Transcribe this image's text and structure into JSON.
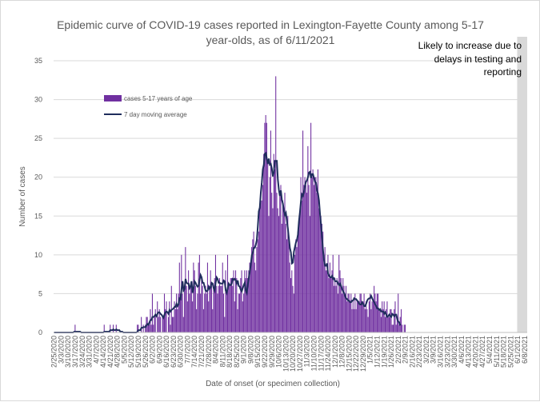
{
  "chart_data": {
    "type": "bar",
    "title_lines": [
      "Epidemic curve of COVID-19 cases reported in Lexington-Fayette County among 5-17",
      "year-olds, as of 6/11/2021"
    ],
    "xlabel": "Date of onset (or specimen collection)",
    "ylabel": "Number of cases",
    "ylim": [
      0,
      35
    ],
    "y_ticks": [
      "0",
      "5",
      "10",
      "15",
      "20",
      "25",
      "30",
      "35"
    ],
    "x_start": "2020-02-25",
    "x_end": "2021-06-10",
    "x_tick_labels": [
      "2/25/2020",
      "3/3/2020",
      "3/10/2020",
      "3/17/2020",
      "3/24/2020",
      "3/31/2020",
      "4/7/2020",
      "4/14/2020",
      "4/21/2020",
      "4/28/2020",
      "5/5/2020",
      "5/12/2020",
      "5/19/2020",
      "5/26/2020",
      "6/2/2020",
      "6/9/2020",
      "6/16/2020",
      "6/23/2020",
      "6/30/2020",
      "7/7/2020",
      "7/14/2020",
      "7/21/2020",
      "7/28/2020",
      "8/4/2020",
      "8/11/2020",
      "8/18/2020",
      "8/25/2020",
      "9/1/2020",
      "9/8/2020",
      "9/15/2020",
      "9/22/2020",
      "9/29/2020",
      "10/6/2020",
      "10/13/2020",
      "10/20/2020",
      "10/27/2020",
      "11/3/2020",
      "11/10/2020",
      "11/17/2020",
      "11/24/2020",
      "12/1/2020",
      "12/8/2020",
      "12/15/2020",
      "12/22/2020",
      "12/29/2020",
      "1/5/2021",
      "1/12/2021",
      "1/19/2021",
      "1/26/2021",
      "2/2/2021",
      "2/9/2021",
      "2/16/2021",
      "2/23/2021",
      "3/2/2021",
      "3/9/2021",
      "3/16/2021",
      "3/23/2021",
      "3/30/2021",
      "4/6/2021",
      "4/13/2021",
      "4/20/2021",
      "4/27/2021",
      "5/4/2021",
      "5/11/2021",
      "5/18/2021",
      "5/25/2021",
      "6/1/2021",
      "6/8/2021"
    ],
    "legend": {
      "placement": "top-left",
      "entries": [
        "cases 5-17 years of age",
        "7 day moving average"
      ]
    },
    "annotation": {
      "lines": [
        "Likely to increase due to",
        "delays in testing and",
        "reporting"
      ],
      "shaded_from": "2021-06-01",
      "shaded_to": "2021-06-10"
    },
    "colors": {
      "bars": "#7030a0",
      "moving_average": "#1f2d5c",
      "shade": "#d9d9d9",
      "grid": "#d9d9d9"
    },
    "series": [
      {
        "name": "cases 5-17 years of age",
        "type": "bar",
        "values": [
          0,
          0,
          0,
          0,
          0,
          0,
          0,
          0,
          0,
          0,
          0,
          0,
          0,
          0,
          0,
          0,
          0,
          0,
          0,
          0,
          0,
          1,
          0,
          0,
          0,
          0,
          0,
          0,
          0,
          0,
          0,
          0,
          0,
          0,
          0,
          0,
          0,
          0,
          0,
          0,
          0,
          0,
          0,
          0,
          0,
          0,
          0,
          0,
          0,
          0,
          1,
          0,
          0,
          0,
          0,
          0,
          1,
          0,
          0,
          1,
          0,
          0,
          1,
          0,
          0,
          0,
          0,
          0,
          0,
          0,
          0,
          0,
          0,
          0,
          0,
          0,
          0,
          0,
          0,
          0,
          0,
          0,
          0,
          1,
          1,
          0,
          0,
          2,
          0,
          1,
          0,
          1,
          2,
          2,
          1,
          1,
          3,
          1,
          5,
          1,
          2,
          3,
          0,
          4,
          2,
          3,
          2,
          0,
          2,
          2,
          5,
          3,
          4,
          0,
          2,
          4,
          1,
          6,
          2,
          2,
          4,
          3,
          5,
          3,
          5,
          9,
          5,
          10,
          5,
          2,
          6,
          11,
          6,
          4,
          8,
          5,
          6,
          6,
          4,
          9,
          8,
          6,
          3,
          5,
          9,
          10,
          5,
          7,
          6,
          3,
          5,
          6,
          5,
          9,
          4,
          6,
          8,
          6,
          3,
          6,
          7,
          10,
          6,
          5,
          6,
          7,
          6,
          6,
          9,
          5,
          2,
          8,
          5,
          10,
          6,
          6,
          7,
          7,
          6,
          8,
          4,
          8,
          7,
          3,
          5,
          5,
          7,
          8,
          4,
          5,
          8,
          7,
          8,
          7,
          8,
          9,
          9,
          11,
          12,
          13,
          9,
          8,
          11,
          12,
          13,
          16,
          17,
          17,
          19,
          23,
          27,
          28,
          27,
          22,
          15,
          20,
          26,
          18,
          16,
          23,
          21,
          33,
          18,
          16,
          15,
          18,
          19,
          14,
          17,
          16,
          18,
          14,
          12,
          15,
          12,
          9,
          7,
          8,
          6,
          5,
          10,
          12,
          11,
          13,
          14,
          15,
          20,
          17,
          26,
          19,
          20,
          19,
          18,
          24,
          19,
          15,
          27,
          20,
          21,
          19,
          20,
          20,
          18,
          21,
          16,
          16,
          15,
          14,
          13,
          10,
          11,
          8,
          8,
          10,
          7,
          9,
          7,
          8,
          10,
          6,
          7,
          6,
          7,
          5,
          10,
          8,
          7,
          5,
          7,
          6,
          5,
          6,
          4,
          5,
          5,
          4,
          5,
          3,
          4,
          3,
          5,
          3,
          4,
          4,
          4,
          5,
          5,
          4,
          4,
          5,
          3,
          4,
          3,
          2,
          4,
          5,
          3,
          4,
          4,
          6,
          5,
          4,
          5,
          5,
          3,
          3,
          2,
          4,
          3,
          4,
          2,
          3,
          4,
          2,
          2,
          3,
          3,
          1,
          1,
          3,
          4,
          1,
          2,
          5,
          1,
          2,
          3,
          1,
          0,
          1,
          1,
          0
        ]
      },
      {
        "name": "7 day moving average",
        "type": "line",
        "values": [
          0,
          0,
          0,
          0,
          0,
          0,
          0,
          0,
          0,
          0,
          0,
          0,
          0,
          0,
          0,
          0,
          0,
          0,
          0,
          0,
          0.1,
          0.1,
          0.1,
          0.1,
          0.1,
          0.1,
          0.1,
          0,
          0,
          0,
          0,
          0,
          0,
          0,
          0,
          0,
          0,
          0,
          0,
          0,
          0,
          0,
          0,
          0,
          0,
          0,
          0,
          0,
          0,
          0,
          0.1,
          0.1,
          0.1,
          0.1,
          0.1,
          0.1,
          0.3,
          0.3,
          0.3,
          0.4,
          0.3,
          0.3,
          0.4,
          0.3,
          0.3,
          0.3,
          0.1,
          0.1,
          0.1,
          0,
          0,
          0,
          0,
          0,
          0,
          0,
          0,
          0,
          0,
          0,
          0,
          0,
          0,
          0.1,
          0.3,
          0.3,
          0.3,
          0.6,
          0.6,
          0.7,
          0.7,
          0.7,
          0.9,
          1.1,
          1,
          1.3,
          1.6,
          1.6,
          2,
          2,
          2.1,
          2.3,
          2.1,
          2.4,
          2.6,
          2.6,
          2.4,
          2.3,
          2.1,
          1.9,
          2.3,
          2.6,
          2.7,
          2.6,
          2.4,
          2.9,
          2.7,
          2.9,
          3,
          3.1,
          3.3,
          3.3,
          3.7,
          3.4,
          3.6,
          4.4,
          4.3,
          5.6,
          6.6,
          5.4,
          5.6,
          6.9,
          6.4,
          6.3,
          6.3,
          5.7,
          5.9,
          6.6,
          5.1,
          5.7,
          6.6,
          6.4,
          6.1,
          5.9,
          6,
          6.8,
          7.4,
          7.1,
          6.4,
          6.4,
          5.9,
          5.4,
          5.3,
          5.4,
          5.9,
          5.6,
          5.8,
          6.4,
          6.3,
          5.7,
          5.4,
          6.4,
          7.1,
          6.9,
          6.4,
          6.4,
          6.3,
          6.3,
          6.3,
          6.7,
          6.6,
          5.4,
          5.1,
          5.7,
          6.3,
          6.1,
          6.1,
          6.3,
          6.9,
          6.8,
          6.9,
          6.7,
          6.3,
          6.7,
          6,
          5.9,
          5.5,
          5.3,
          5.7,
          6.1,
          6.4,
          5.4,
          5.1,
          6.1,
          7,
          7.8,
          8.7,
          9.9,
          10.3,
          10.9,
          10.9,
          11.3,
          11.9,
          13.6,
          15.6,
          16.1,
          18,
          19.3,
          21,
          21.6,
          23,
          23.1,
          22.4,
          21.7,
          22.4,
          21.6,
          21.7,
          21.1,
          20.1,
          20.6,
          22.1,
          22.1,
          22.1,
          19.7,
          18.4,
          17.6,
          18.3,
          17.1,
          16.6,
          15.7,
          15.1,
          15.4,
          14.4,
          13.4,
          12.1,
          10.9,
          10.3,
          8.9,
          9,
          10.4,
          11,
          11.6,
          11.9,
          12.6,
          14.3,
          15.5,
          16.9,
          17.8,
          17.6,
          18.1,
          18.9,
          19.4,
          19.6,
          20,
          20.6,
          20.7,
          19.9,
          20.4,
          20.4,
          19.9,
          19.4,
          19.3,
          18.3,
          17.9,
          17,
          15.3,
          13.9,
          12.3,
          10.6,
          9.3,
          8.6,
          8.6,
          8.9,
          7.6,
          7.3,
          7.1,
          7.1,
          7.3,
          6.9,
          7,
          6.6,
          6.6,
          6.6,
          6.3,
          6.1,
          6.3,
          6,
          5.6,
          5.3,
          5.1,
          4.7,
          4.4,
          4.3,
          4.1,
          4.1,
          3.9,
          3.9,
          4.1,
          4.1,
          4.4,
          4.3,
          4.3,
          4.1,
          4,
          3.7,
          3.6,
          3.6,
          3.9,
          3.7,
          3.4,
          3.4,
          3.7,
          4.1,
          4.3,
          4.4,
          4.4,
          4.7,
          4.4,
          4.1,
          3.9,
          3.6,
          3.4,
          3.1,
          3.1,
          2.9,
          3,
          2.7,
          2.7,
          2.7,
          2.4,
          2.6,
          2.3,
          2,
          2.1,
          2.3,
          2.1,
          2,
          2.4,
          2.3,
          2.1,
          2.3,
          2.3,
          1.7,
          1.4,
          1.3,
          0.9
        ]
      }
    ]
  }
}
